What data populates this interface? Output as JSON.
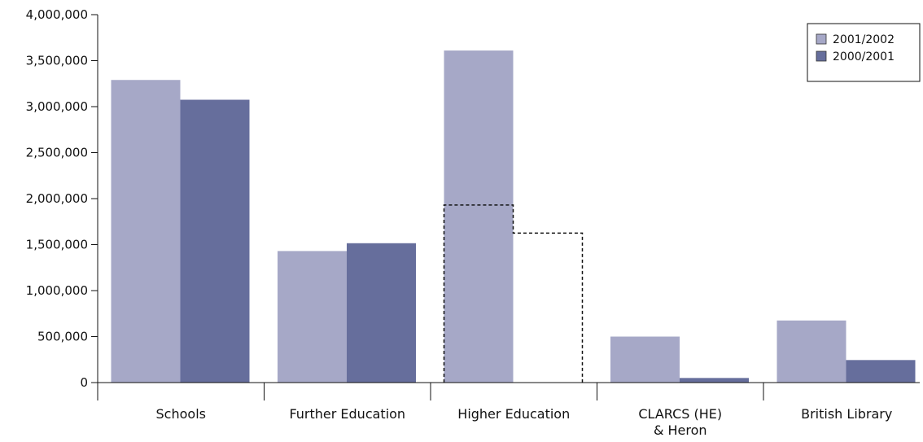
{
  "chart_data": {
    "type": "bar",
    "categories": [
      [
        "Schools"
      ],
      [
        "Further Education"
      ],
      [
        "Higher Education"
      ],
      [
        "CLARCS (HE)",
        "& Heron"
      ],
      [
        "British Library"
      ]
    ],
    "series": [
      {
        "name": "2001/2002",
        "color": "#a6a8c7",
        "values": [
          3290000,
          1430000,
          3610000,
          500000,
          675000
        ]
      },
      {
        "name": "2000/2001",
        "color": "#666e9c",
        "values": [
          3075000,
          1515000,
          0,
          50000,
          245000
        ]
      }
    ],
    "outlined_overlay": {
      "category": "Higher Education",
      "values": [
        1930000,
        1625000
      ],
      "style": "dashed"
    },
    "yticks": [
      "0",
      "500,000",
      "1,000,000",
      "1,500,000",
      "2,000,000",
      "2,500,000",
      "3,000,000",
      "3,500,000",
      "4,000,000"
    ],
    "ylim": [
      0,
      4000000
    ],
    "legend_position": "top-right",
    "grid": false
  }
}
